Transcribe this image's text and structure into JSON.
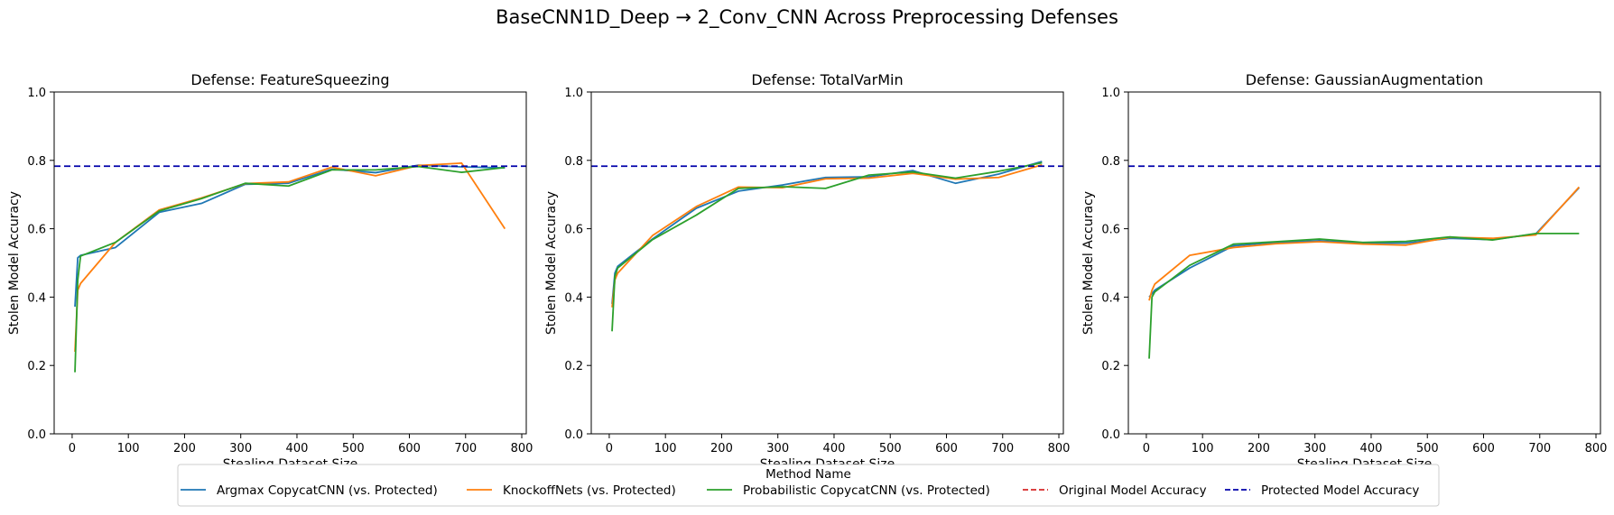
{
  "figure": {
    "suptitle": "BaseCNN1D_Deep → 2_Conv_CNN Across Preprocessing Defenses"
  },
  "legend": {
    "title": "Method Name",
    "placement": "bottom-center",
    "entries": [
      {
        "label": "Argmax CopycatCNN (vs. Protected)",
        "color": "#1f77b4",
        "style": "solid"
      },
      {
        "label": "KnockoffNets (vs. Protected)",
        "color": "#ff7f0e",
        "style": "solid"
      },
      {
        "label": "Probabilistic CopycatCNN (vs. Protected)",
        "color": "#2ca02c",
        "style": "solid"
      },
      {
        "label": "Original Model Accuracy",
        "color": "#d62728",
        "style": "dashed"
      },
      {
        "label": "Protected Model Accuracy",
        "color": "#0000aa",
        "style": "dashed"
      }
    ]
  },
  "chart_data": [
    {
      "type": "line",
      "title": "Defense: FeatureSqueezing",
      "xlabel": "Stealing Dataset Size",
      "ylabel": "Stolen Model Accuracy",
      "xlim": [
        -32,
        808
      ],
      "ylim": [
        0.0,
        1.0
      ],
      "xticks": [
        0,
        100,
        200,
        300,
        400,
        500,
        600,
        700,
        800
      ],
      "yticks": [
        0.0,
        0.2,
        0.4,
        0.6,
        0.8,
        1.0
      ],
      "grid": false,
      "x": [
        5,
        10,
        15,
        77,
        155,
        230,
        308,
        385,
        462,
        540,
        616,
        693,
        770
      ],
      "series": [
        {
          "name": "Argmax CopycatCNN (vs. Protected)",
          "color": "#1f77b4",
          "values": [
            0.372,
            0.515,
            0.522,
            0.545,
            0.648,
            0.674,
            0.73,
            0.733,
            0.774,
            0.764,
            0.786,
            0.781,
            0.778
          ]
        },
        {
          "name": "KnockoffNets (vs. Protected)",
          "color": "#ff7f0e",
          "values": [
            0.24,
            0.42,
            0.44,
            0.56,
            0.655,
            0.69,
            0.732,
            0.737,
            0.78,
            0.755,
            0.785,
            0.792,
            0.6
          ]
        },
        {
          "name": "Probabilistic CopycatCNN (vs. Protected)",
          "color": "#2ca02c",
          "values": [
            0.18,
            0.45,
            0.52,
            0.56,
            0.652,
            0.688,
            0.733,
            0.725,
            0.772,
            0.772,
            0.782,
            0.765,
            0.779
          ]
        }
      ],
      "hlines": [
        {
          "name": "Protected Model Accuracy",
          "y": 0.783,
          "color": "#0000aa"
        }
      ]
    },
    {
      "type": "line",
      "title": "Defense: TotalVarMin",
      "xlabel": "Stealing Dataset Size",
      "ylabel": "Stolen Model Accuracy",
      "xlim": [
        -32,
        808
      ],
      "ylim": [
        0.0,
        1.0
      ],
      "xticks": [
        0,
        100,
        200,
        300,
        400,
        500,
        600,
        700,
        800
      ],
      "yticks": [
        0.0,
        0.2,
        0.4,
        0.6,
        0.8,
        1.0
      ],
      "grid": false,
      "x": [
        5,
        10,
        15,
        77,
        155,
        230,
        308,
        385,
        462,
        540,
        616,
        693,
        770
      ],
      "series": [
        {
          "name": "Argmax CopycatCNN (vs. Protected)",
          "color": "#1f77b4",
          "values": [
            0.38,
            0.47,
            0.49,
            0.57,
            0.66,
            0.71,
            0.728,
            0.75,
            0.752,
            0.77,
            0.733,
            0.76,
            0.797
          ]
        },
        {
          "name": "KnockoffNets (vs. Protected)",
          "color": "#ff7f0e",
          "values": [
            0.37,
            0.45,
            0.47,
            0.58,
            0.665,
            0.722,
            0.72,
            0.746,
            0.748,
            0.762,
            0.745,
            0.75,
            0.787
          ]
        },
        {
          "name": "Probabilistic CopycatCNN (vs. Protected)",
          "color": "#2ca02c",
          "values": [
            0.3,
            0.46,
            0.485,
            0.568,
            0.64,
            0.718,
            0.723,
            0.718,
            0.757,
            0.766,
            0.748,
            0.768,
            0.793
          ]
        }
      ],
      "hlines": [
        {
          "name": "Protected Model Accuracy",
          "y": 0.783,
          "color": "#0000aa"
        }
      ]
    },
    {
      "type": "line",
      "title": "Defense: GaussianAugmentation",
      "xlabel": "Stealing Dataset Size",
      "ylabel": "Stolen Model Accuracy",
      "xlim": [
        -32,
        808
      ],
      "ylim": [
        0.0,
        1.0
      ],
      "xticks": [
        0,
        100,
        200,
        300,
        400,
        500,
        600,
        700,
        800
      ],
      "yticks": [
        0.0,
        0.2,
        0.4,
        0.6,
        0.8,
        1.0
      ],
      "grid": false,
      "x": [
        5,
        10,
        15,
        77,
        155,
        230,
        308,
        385,
        462,
        540,
        616,
        693,
        770
      ],
      "series": [
        {
          "name": "Argmax CopycatCNN (vs. Protected)",
          "color": "#1f77b4",
          "values": [
            0.4,
            0.41,
            0.42,
            0.485,
            0.55,
            0.56,
            0.565,
            0.558,
            0.558,
            0.572,
            0.568,
            0.585,
            0.72
          ]
        },
        {
          "name": "KnockoffNets (vs. Protected)",
          "color": "#ff7f0e",
          "values": [
            0.39,
            0.42,
            0.438,
            0.522,
            0.545,
            0.556,
            0.562,
            0.555,
            0.552,
            0.575,
            0.572,
            0.582,
            0.722
          ]
        },
        {
          "name": "Probabilistic CopycatCNN (vs. Protected)",
          "color": "#2ca02c",
          "values": [
            0.22,
            0.4,
            0.415,
            0.493,
            0.555,
            0.562,
            0.57,
            0.56,
            0.563,
            0.576,
            0.567,
            0.586,
            0.586
          ]
        }
      ],
      "hlines": [
        {
          "name": "Protected Model Accuracy",
          "y": 0.783,
          "color": "#0000aa"
        }
      ]
    }
  ]
}
